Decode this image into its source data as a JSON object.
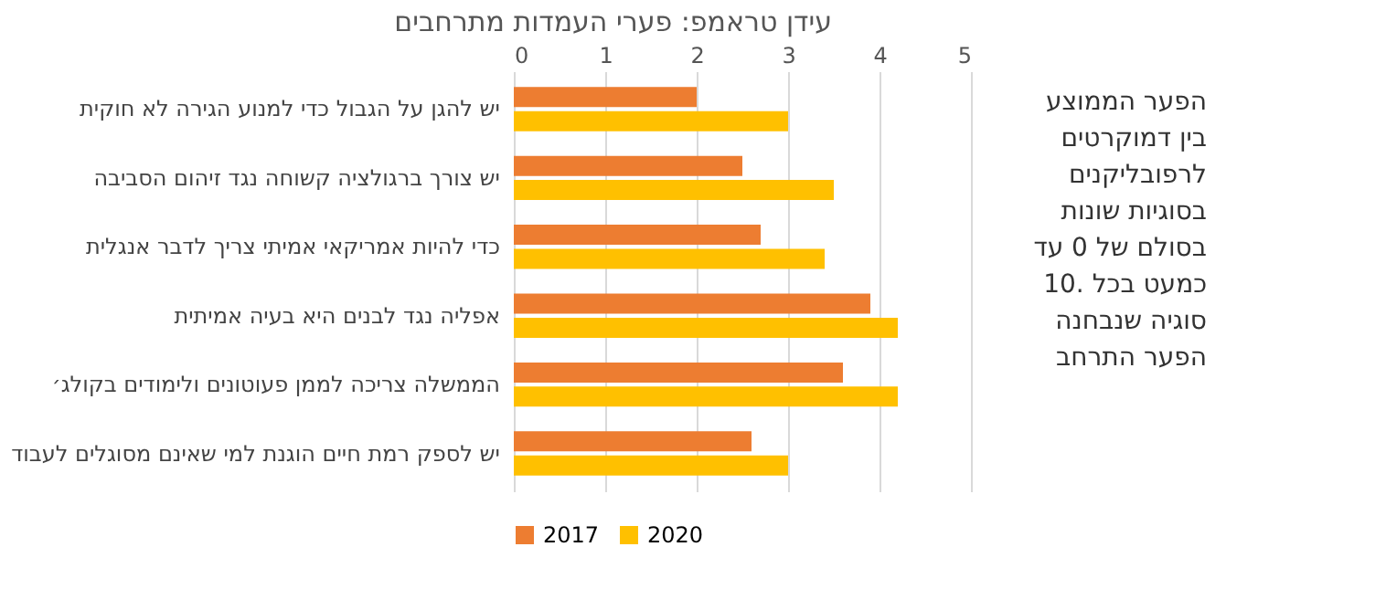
{
  "chart_data": {
    "type": "bar",
    "orientation": "horizontal",
    "title": "עידן טראמפ: פערי העמדות מתרחבים",
    "categories": [
      "יש להגן על הגבול כדי למנוע הגירה לא חוקית",
      "יש צורך ברגולציה קשוחה נגד זיהום הסביבה",
      "כדי להיות אמריקאי אמיתי צריך לדבר אנגלית",
      "אפליה נגד לבנים היא בעיה אמיתית",
      "הממשלה צריכה לממן פעוטונים ולימודים בקולג׳",
      "יש לספק רמת חיים הוגנת למי שאינם מסוגלים לעבוד"
    ],
    "series": [
      {
        "name": "2017",
        "color": "#ed7d31",
        "values": [
          2.0,
          2.5,
          2.7,
          3.9,
          3.6,
          2.6
        ]
      },
      {
        "name": "2020",
        "color": "#ffc000",
        "values": [
          3.0,
          3.5,
          3.4,
          4.2,
          4.2,
          3.0
        ]
      }
    ],
    "xlim": [
      0,
      5
    ],
    "xticks": [
      0,
      1,
      2,
      3,
      4,
      5
    ],
    "grid": "x",
    "legend": "bottom",
    "annotations": [
      "הפער הממוצע בין דמוקרטים לרפובליקנים בסוגיות שונות בסולם של 0 עד 10. כמעט בכל סוגיה שנבחנה הפער התרחב"
    ]
  }
}
